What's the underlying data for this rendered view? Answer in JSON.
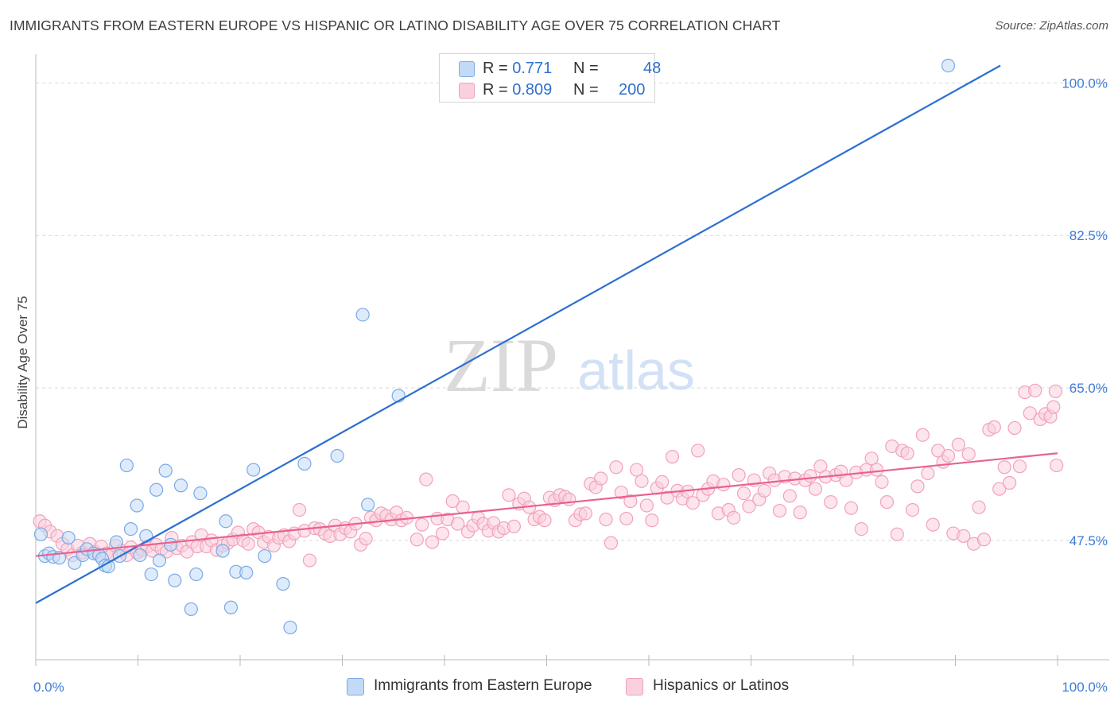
{
  "title": "IMMIGRANTS FROM EASTERN EUROPE VS HISPANIC OR LATINO DISABILITY AGE OVER 75 CORRELATION CHART",
  "source": "Source: ZipAtlas.com",
  "watermark": {
    "zip": "ZIP",
    "atlas": "atlas"
  },
  "legend": {
    "r_label": "R =",
    "n_label": "N =",
    "rows": [
      {
        "r": "0.771",
        "n": "48",
        "color": "#a8c8f0"
      },
      {
        "r": "0.809",
        "n": "200",
        "color": "#f7b8cc"
      }
    ]
  },
  "bottom_legend": [
    {
      "label": "Immigrants from Eastern Europe",
      "color": "#a8c8f0"
    },
    {
      "label": "Hispanics or Latinos",
      "color": "#f7b8cc"
    }
  ],
  "colors": {
    "blue_point_stroke": "#7aaae6",
    "blue_point_fill": "#c3daf6",
    "blue_line": "#2e6fd1",
    "pink_point_stroke": "#f2a2bb",
    "pink_point_fill": "#f9d0dd",
    "pink_line": "#e8628e",
    "tick_label": "#3f7bd6"
  },
  "chart_data": {
    "type": "scatter",
    "title": "IMMIGRANTS FROM EASTERN EUROPE VS HISPANIC OR LATINO DISABILITY AGE OVER 75 CORRELATION CHART",
    "xlabel": "",
    "ylabel": "Disability Age Over 75",
    "xlim": [
      0,
      100
    ],
    "ylim": [
      33.8,
      102.5
    ],
    "x_tick_labels": [
      "0.0%",
      "100.0%"
    ],
    "y_ticks": [
      47.5,
      65.0,
      82.5,
      100.0
    ],
    "y_tick_labels": [
      "47.5%",
      "65.0%",
      "82.5%",
      "100.0%"
    ],
    "grid": true,
    "series": [
      {
        "name": "Immigrants from Eastern Europe",
        "r": 0.771,
        "n": 48,
        "trend": {
          "x": [
            0,
            94.4
          ],
          "y": [
            40.3,
            102.0
          ]
        },
        "points": [
          [
            0.5,
            48.2
          ],
          [
            0.9,
            45.7
          ],
          [
            1.3,
            46.0
          ],
          [
            1.7,
            45.6
          ],
          [
            2.3,
            45.5
          ],
          [
            3.2,
            47.8
          ],
          [
            3.8,
            44.9
          ],
          [
            4.6,
            45.8
          ],
          [
            5.0,
            46.5
          ],
          [
            5.7,
            46.0
          ],
          [
            6.2,
            45.8
          ],
          [
            6.5,
            45.4
          ],
          [
            6.8,
            44.6
          ],
          [
            7.1,
            44.5
          ],
          [
            7.9,
            47.3
          ],
          [
            8.2,
            45.7
          ],
          [
            8.9,
            56.1
          ],
          [
            9.3,
            48.8
          ],
          [
            9.9,
            51.5
          ],
          [
            10.2,
            45.8
          ],
          [
            10.8,
            48.0
          ],
          [
            11.3,
            43.6
          ],
          [
            11.8,
            53.3
          ],
          [
            12.1,
            45.2
          ],
          [
            12.7,
            55.5
          ],
          [
            13.2,
            47.0
          ],
          [
            13.6,
            42.9
          ],
          [
            14.2,
            53.8
          ],
          [
            15.2,
            39.6
          ],
          [
            15.7,
            43.6
          ],
          [
            16.1,
            52.9
          ],
          [
            18.3,
            46.3
          ],
          [
            18.6,
            49.7
          ],
          [
            19.1,
            39.8
          ],
          [
            19.6,
            43.9
          ],
          [
            20.6,
            43.8
          ],
          [
            21.3,
            55.6
          ],
          [
            22.4,
            45.7
          ],
          [
            24.2,
            42.5
          ],
          [
            24.9,
            37.5
          ],
          [
            26.3,
            56.3
          ],
          [
            29.5,
            57.2
          ],
          [
            32.0,
            73.4
          ],
          [
            32.5,
            51.6
          ],
          [
            35.5,
            64.1
          ],
          [
            47.2,
            101.6
          ],
          [
            49.6,
            101.2
          ],
          [
            89.3,
            102.0
          ]
        ]
      },
      {
        "name": "Hispanics or Latinos",
        "r": 0.809,
        "n": 200,
        "trend": {
          "x": [
            0,
            100
          ],
          "y": [
            45.7,
            57.5
          ]
        },
        "points": [
          [
            0.4,
            49.7
          ],
          [
            0.9,
            49.2
          ],
          [
            1.4,
            48.5
          ],
          [
            2.1,
            48.0
          ],
          [
            2.6,
            47.1
          ],
          [
            3.1,
            46.5
          ],
          [
            3.6,
            45.8
          ],
          [
            4.1,
            46.9
          ],
          [
            4.6,
            46.1
          ],
          [
            5.3,
            47.1
          ],
          [
            5.8,
            46.2
          ],
          [
            6.4,
            46.8
          ],
          [
            6.9,
            46.0
          ],
          [
            7.4,
            45.8
          ],
          [
            7.8,
            46.9
          ],
          [
            8.4,
            46.3
          ],
          [
            8.9,
            45.8
          ],
          [
            9.3,
            46.7
          ],
          [
            9.9,
            46.1
          ],
          [
            10.4,
            46.4
          ],
          [
            10.9,
            46.8
          ],
          [
            11.4,
            46.3
          ],
          [
            11.8,
            47.0
          ],
          [
            12.3,
            46.5
          ],
          [
            12.8,
            46.2
          ],
          [
            13.3,
            47.8
          ],
          [
            13.8,
            46.6
          ],
          [
            14.3,
            46.9
          ],
          [
            14.8,
            46.2
          ],
          [
            15.3,
            47.3
          ],
          [
            15.8,
            46.8
          ],
          [
            16.2,
            48.1
          ],
          [
            16.7,
            46.8
          ],
          [
            17.2,
            47.5
          ],
          [
            17.7,
            46.4
          ],
          [
            18.3,
            46.9
          ],
          [
            18.8,
            47.2
          ],
          [
            19.3,
            47.6
          ],
          [
            19.8,
            48.4
          ],
          [
            20.3,
            47.5
          ],
          [
            20.8,
            47.1
          ],
          [
            21.3,
            48.8
          ],
          [
            21.8,
            48.4
          ],
          [
            22.3,
            47.3
          ],
          [
            22.8,
            47.9
          ],
          [
            23.3,
            46.9
          ],
          [
            23.8,
            47.8
          ],
          [
            24.3,
            48.1
          ],
          [
            24.8,
            47.4
          ],
          [
            25.3,
            48.3
          ],
          [
            25.8,
            51.0
          ],
          [
            26.3,
            48.6
          ],
          [
            26.8,
            45.2
          ],
          [
            27.3,
            48.9
          ],
          [
            27.8,
            48.8
          ],
          [
            28.3,
            48.3
          ],
          [
            28.8,
            48.0
          ],
          [
            29.3,
            49.2
          ],
          [
            29.8,
            48.2
          ],
          [
            30.3,
            48.9
          ],
          [
            30.8,
            48.5
          ],
          [
            31.3,
            49.4
          ],
          [
            31.8,
            47.0
          ],
          [
            32.3,
            47.7
          ],
          [
            32.8,
            50.1
          ],
          [
            33.3,
            49.8
          ],
          [
            33.8,
            50.6
          ],
          [
            34.3,
            50.3
          ],
          [
            34.8,
            49.9
          ],
          [
            35.3,
            50.7
          ],
          [
            35.8,
            49.8
          ],
          [
            36.3,
            50.1
          ],
          [
            37.3,
            47.6
          ],
          [
            37.8,
            49.3
          ],
          [
            38.2,
            54.5
          ],
          [
            38.8,
            47.3
          ],
          [
            39.3,
            50.0
          ],
          [
            39.8,
            48.3
          ],
          [
            40.3,
            49.9
          ],
          [
            40.8,
            52.0
          ],
          [
            41.3,
            49.4
          ],
          [
            41.8,
            51.3
          ],
          [
            42.3,
            48.5
          ],
          [
            42.8,
            49.2
          ],
          [
            43.3,
            50.1
          ],
          [
            43.8,
            49.4
          ],
          [
            44.3,
            48.6
          ],
          [
            44.8,
            49.5
          ],
          [
            45.3,
            48.5
          ],
          [
            45.8,
            48.9
          ],
          [
            46.3,
            52.7
          ],
          [
            46.8,
            49.1
          ],
          [
            47.3,
            51.7
          ],
          [
            47.8,
            52.3
          ],
          [
            48.3,
            51.3
          ],
          [
            48.8,
            49.9
          ],
          [
            49.3,
            50.2
          ],
          [
            49.8,
            49.8
          ],
          [
            50.3,
            52.4
          ],
          [
            50.8,
            52.1
          ],
          [
            51.3,
            52.7
          ],
          [
            51.8,
            52.5
          ],
          [
            52.2,
            52.2
          ],
          [
            52.8,
            49.8
          ],
          [
            53.3,
            50.5
          ],
          [
            53.8,
            50.6
          ],
          [
            54.3,
            54.0
          ],
          [
            54.8,
            53.6
          ],
          [
            55.3,
            54.6
          ],
          [
            55.8,
            49.9
          ],
          [
            56.3,
            47.2
          ],
          [
            56.8,
            55.9
          ],
          [
            57.3,
            53.0
          ],
          [
            57.8,
            50.0
          ],
          [
            58.2,
            52.0
          ],
          [
            58.8,
            55.6
          ],
          [
            59.3,
            54.3
          ],
          [
            59.8,
            51.5
          ],
          [
            60.3,
            49.8
          ],
          [
            60.8,
            53.5
          ],
          [
            61.3,
            54.2
          ],
          [
            61.8,
            52.4
          ],
          [
            62.3,
            57.1
          ],
          [
            62.8,
            53.2
          ],
          [
            63.3,
            52.3
          ],
          [
            63.8,
            53.1
          ],
          [
            64.3,
            51.8
          ],
          [
            64.8,
            57.8
          ],
          [
            65.3,
            52.7
          ],
          [
            65.8,
            53.4
          ],
          [
            66.3,
            54.3
          ],
          [
            66.8,
            50.6
          ],
          [
            67.3,
            53.9
          ],
          [
            67.8,
            51.0
          ],
          [
            68.3,
            50.1
          ],
          [
            68.8,
            55.0
          ],
          [
            69.3,
            52.9
          ],
          [
            69.8,
            51.4
          ],
          [
            70.3,
            54.4
          ],
          [
            70.8,
            52.2
          ],
          [
            71.3,
            53.2
          ],
          [
            71.8,
            55.2
          ],
          [
            72.3,
            54.4
          ],
          [
            72.8,
            50.9
          ],
          [
            73.3,
            54.8
          ],
          [
            73.8,
            52.6
          ],
          [
            74.3,
            54.6
          ],
          [
            74.8,
            50.7
          ],
          [
            75.3,
            54.4
          ],
          [
            75.8,
            54.9
          ],
          [
            76.3,
            53.4
          ],
          [
            76.8,
            56.0
          ],
          [
            77.3,
            54.8
          ],
          [
            77.8,
            51.9
          ],
          [
            78.3,
            55.0
          ],
          [
            78.8,
            55.4
          ],
          [
            79.3,
            54.4
          ],
          [
            79.8,
            51.2
          ],
          [
            80.3,
            55.3
          ],
          [
            80.8,
            48.8
          ],
          [
            81.3,
            55.6
          ],
          [
            81.8,
            56.9
          ],
          [
            82.3,
            55.6
          ],
          [
            82.8,
            54.2
          ],
          [
            83.3,
            51.9
          ],
          [
            83.8,
            58.3
          ],
          [
            84.3,
            48.2
          ],
          [
            84.8,
            57.8
          ],
          [
            85.3,
            57.5
          ],
          [
            85.8,
            51.0
          ],
          [
            86.3,
            53.7
          ],
          [
            86.8,
            59.6
          ],
          [
            87.3,
            55.2
          ],
          [
            87.8,
            49.3
          ],
          [
            88.3,
            57.8
          ],
          [
            88.8,
            56.5
          ],
          [
            89.3,
            57.2
          ],
          [
            89.8,
            48.3
          ],
          [
            90.3,
            58.5
          ],
          [
            90.8,
            48.0
          ],
          [
            91.3,
            57.4
          ],
          [
            91.8,
            47.1
          ],
          [
            92.3,
            51.3
          ],
          [
            92.8,
            47.6
          ],
          [
            93.3,
            60.2
          ],
          [
            93.8,
            60.5
          ],
          [
            94.3,
            53.4
          ],
          [
            94.8,
            55.9
          ],
          [
            95.3,
            54.1
          ],
          [
            95.8,
            60.4
          ],
          [
            96.3,
            56.0
          ],
          [
            96.8,
            64.5
          ],
          [
            97.3,
            62.1
          ],
          [
            97.8,
            64.7
          ],
          [
            98.3,
            61.4
          ],
          [
            98.8,
            62.0
          ],
          [
            99.3,
            61.7
          ],
          [
            99.6,
            62.8
          ],
          [
            99.8,
            64.6
          ],
          [
            99.9,
            56.1
          ]
        ]
      }
    ]
  }
}
